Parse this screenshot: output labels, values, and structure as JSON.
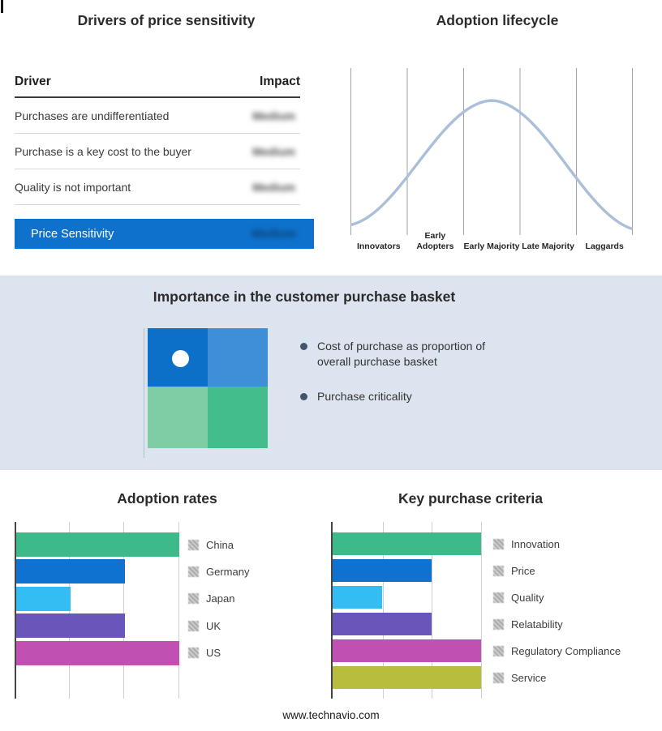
{
  "drivers": {
    "title": "Drivers of price sensitivity",
    "header": {
      "driver": "Driver",
      "impact": "Impact"
    },
    "rows": [
      {
        "driver": "Purchases are undifferentiated",
        "impact": "Medium"
      },
      {
        "driver": "Purchase is a key cost to the buyer",
        "impact": "Medium"
      },
      {
        "driver": "Quality is not important",
        "impact": "Medium"
      }
    ],
    "highlight": {
      "label": "Price Sensitivity",
      "impact": "Medium",
      "bg": "#0e72cc"
    }
  },
  "basket": {
    "title": "Importance in the customer purchase basket",
    "bullets": [
      "Cost of purchase as proportion of overall purchase basket",
      "Purchase criticality"
    ],
    "band_bg": "#dce4ef",
    "quadrant_colors": {
      "top_left": "#0d70c8",
      "top_right": "#3f8ed8",
      "bottom_left": "#7fcda4",
      "bottom_right": "#42bd8b"
    }
  },
  "chart_data": [
    {
      "type": "line",
      "title": "Adoption lifecycle",
      "categories": [
        "Innovators",
        "Early Adopters",
        "Early Majority",
        "Late Majority",
        "Laggards"
      ],
      "shape": "bell",
      "color": "#aabfd8",
      "grid": true
    },
    {
      "type": "bar",
      "title": "Adoption rates",
      "orientation": "horizontal",
      "categories": [
        "China",
        "Germany",
        "Japan",
        "UK",
        "US"
      ],
      "values": [
        3,
        2,
        1,
        2,
        3
      ],
      "xlim": [
        0,
        3
      ],
      "colors": [
        "#3eba8a",
        "#0f72d0",
        "#33bdf2",
        "#6a55ba",
        "#c051b3"
      ],
      "grid": true,
      "legend_position": "right"
    },
    {
      "type": "bar",
      "title": "Key purchase criteria",
      "orientation": "horizontal",
      "categories": [
        "Innovation",
        "Price",
        "Quality",
        "Relatability",
        "Regulatory Compliance",
        "Service"
      ],
      "values": [
        3,
        2,
        1,
        2,
        3,
        3
      ],
      "xlim": [
        0,
        3
      ],
      "colors": [
        "#3eba8a",
        "#0f72d0",
        "#33bdf2",
        "#6a55ba",
        "#c051b3",
        "#b9bd3e"
      ],
      "grid": true,
      "legend_position": "right"
    }
  ],
  "footer": {
    "url": "www.technavio.com"
  }
}
